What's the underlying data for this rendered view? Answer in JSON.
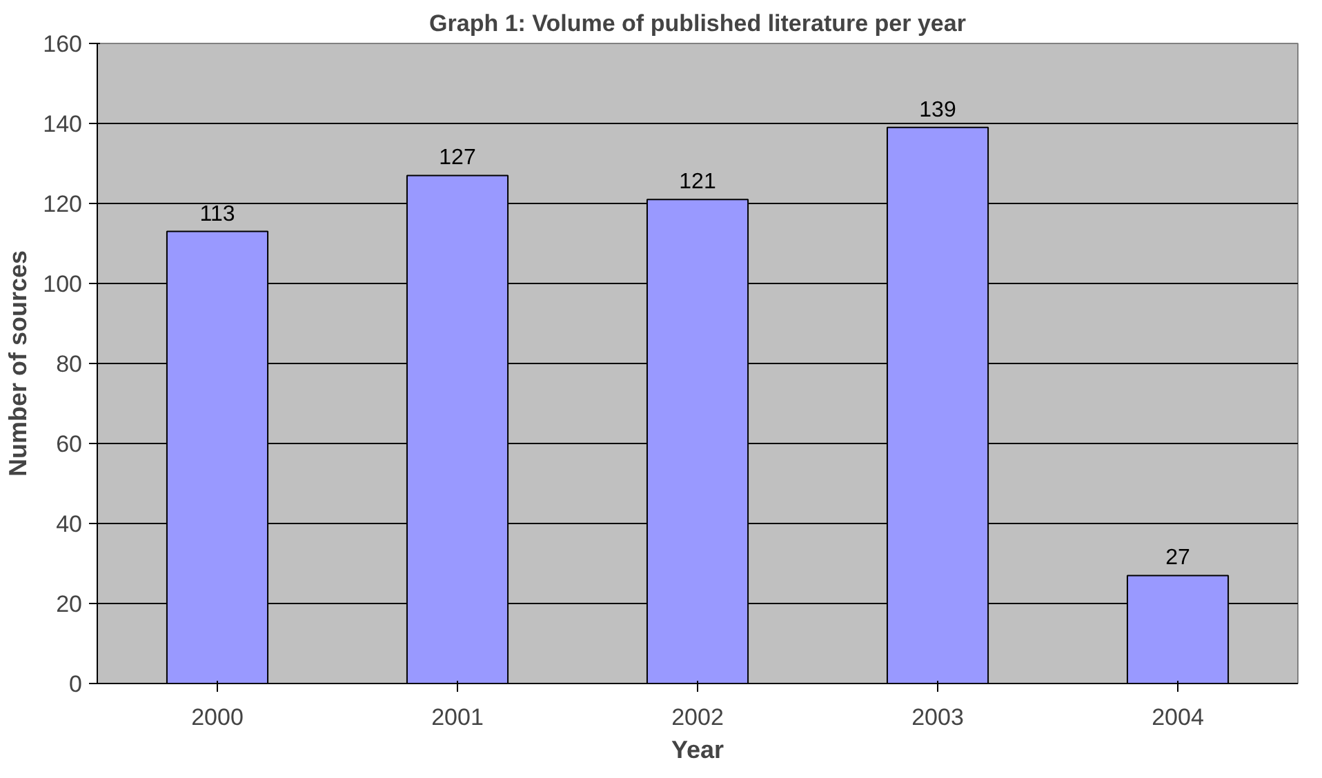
{
  "chart_data": {
    "type": "bar",
    "title": "Graph 1: Volume of published literature per year",
    "xlabel": "Year",
    "ylabel": "Number of sources",
    "categories": [
      "2000",
      "2001",
      "2002",
      "2003",
      "2004"
    ],
    "values": [
      113,
      127,
      121,
      139,
      27
    ],
    "color": "#9999ff",
    "ylim": [
      0,
      160
    ],
    "yticks": [
      0,
      20,
      40,
      60,
      80,
      100,
      120,
      140,
      160
    ],
    "grid": "y",
    "data_labels": true
  }
}
